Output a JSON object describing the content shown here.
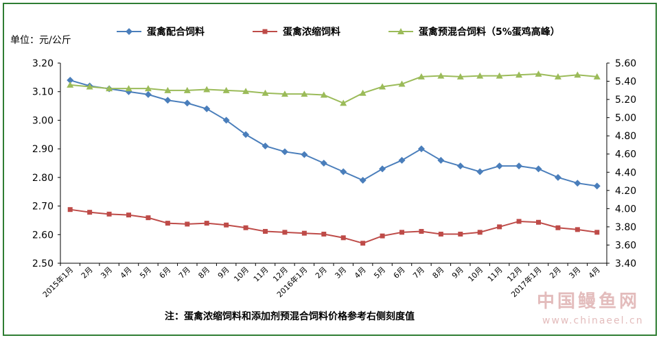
{
  "chart_data": {
    "type": "line",
    "unit_label": "单位：元/公斤",
    "note": "注：蛋禽浓缩饲料和添加剂预混合饲料价格参考右侧刻度值",
    "legend_position": "top",
    "grid": false,
    "x_labels": [
      "2015年1月",
      "2月",
      "3月",
      "4月",
      "5月",
      "6月",
      "7月",
      "8月",
      "9月",
      "10月",
      "11月",
      "12月",
      "2016年1月",
      "2月",
      "3月",
      "4月",
      "5月",
      "6月",
      "7月",
      "8月",
      "9月",
      "10月",
      "11月",
      "12月",
      "2017年1月",
      "2月",
      "3月",
      "4月"
    ],
    "left_axis": {
      "ylim": [
        2.5,
        3.2
      ],
      "ticks": [
        "2.50",
        "2.60",
        "2.70",
        "2.80",
        "2.90",
        "3.00",
        "3.10",
        "3.20"
      ]
    },
    "right_axis": {
      "ylim": [
        3.4,
        5.6
      ],
      "ticks": [
        "3.40",
        "3.60",
        "3.80",
        "4.00",
        "4.20",
        "4.40",
        "4.60",
        "4.80",
        "5.00",
        "5.20",
        "5.40",
        "5.60"
      ]
    },
    "series": [
      {
        "name": "蛋禽配合饲料",
        "axis": "left",
        "color": "#4a7ebb",
        "marker": "diamond",
        "values": [
          3.14,
          3.12,
          3.11,
          3.1,
          3.09,
          3.07,
          3.06,
          3.04,
          3.0,
          2.95,
          2.91,
          2.89,
          2.88,
          2.85,
          2.82,
          2.79,
          2.83,
          2.86,
          2.9,
          2.86,
          2.84,
          2.82,
          2.84,
          2.84,
          2.83,
          2.8,
          2.78,
          2.77
        ]
      },
      {
        "name": "蛋禽浓缩饲料",
        "axis": "right",
        "color": "#be4b48",
        "marker": "square",
        "values": [
          3.99,
          3.96,
          3.94,
          3.93,
          3.9,
          3.84,
          3.83,
          3.84,
          3.82,
          3.79,
          3.75,
          3.74,
          3.73,
          3.72,
          3.68,
          3.62,
          3.7,
          3.74,
          3.75,
          3.72,
          3.72,
          3.74,
          3.8,
          3.86,
          3.85,
          3.79,
          3.77,
          3.74
        ]
      },
      {
        "name": "蛋禽预混合饲料（5%蛋鸡高峰）",
        "axis": "right",
        "color": "#9bbb59",
        "marker": "triangle",
        "values": [
          5.36,
          5.34,
          5.32,
          5.32,
          5.32,
          5.3,
          5.3,
          5.31,
          5.3,
          5.29,
          5.27,
          5.26,
          5.26,
          5.25,
          5.16,
          5.27,
          5.34,
          5.37,
          5.45,
          5.46,
          5.45,
          5.46,
          5.46,
          5.47,
          5.48,
          5.45,
          5.47,
          5.45
        ]
      }
    ]
  },
  "watermark": {
    "site_name": "中国鳗鱼网",
    "site_url": "www.chinaeel.cn"
  }
}
